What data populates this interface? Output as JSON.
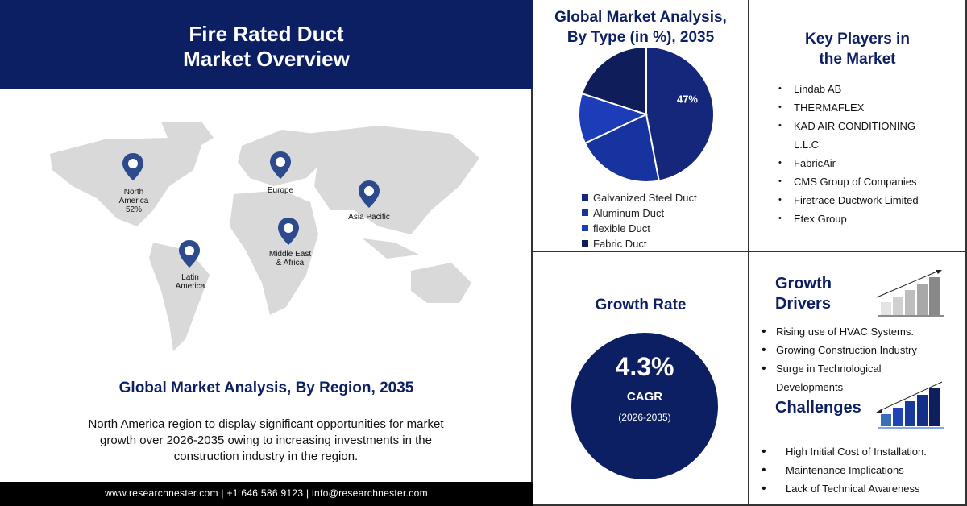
{
  "header": {
    "title_line1": "Fire Rated Duct",
    "title_line2": "Market Overview"
  },
  "map": {
    "pins": [
      {
        "label_lines": [
          "North",
          "America",
          "52%"
        ]
      },
      {
        "label_lines": [
          "Europe"
        ]
      },
      {
        "label_lines": [
          "Asia Pacific"
        ]
      },
      {
        "label_lines": [
          "Middle East",
          "& Africa"
        ]
      },
      {
        "label_lines": [
          "Latin",
          "America"
        ]
      }
    ],
    "pin_color": "#2c4a8c",
    "land_color": "#d9d9d9"
  },
  "region": {
    "title": "Global Market Analysis, By Region, 2035",
    "description": "North America region to display significant opportunities for market growth over 2026-2035 owing to increasing investments in the construction industry in the region."
  },
  "footer": {
    "text": "www.researchnester.com | +1 646 586 9123 | info@researchnester.com"
  },
  "chart_data": {
    "type": "pie",
    "title_line1": "Global Market Analysis,",
    "title_line2": "By Type (in %), 2035",
    "categories": [
      "Galvanized Steel Duct",
      "Aluminum Duct",
      "flexible Duct",
      "Fabric Duct"
    ],
    "values": [
      47,
      21,
      12,
      20
    ],
    "data_labels": [
      "47%",
      "",
      "",
      ""
    ],
    "colors": [
      "#14277a",
      "#1733a0",
      "#1c3cb8",
      "#0f1e5a"
    ],
    "legend_placement": "bottom"
  },
  "key_players": {
    "title_line1": "Key Players in",
    "title_line2": "the Market",
    "items": [
      "Lindab AB",
      "THERMAFLEX",
      "KAD AIR CONDITIONING",
      "L.L.C",
      "FabricAir",
      "CMS Group of Companies",
      "Firetrace Ductwork Limited",
      "Etex Group"
    ]
  },
  "growth_rate": {
    "title": "Growth Rate",
    "value": "4.3%",
    "label": "CAGR",
    "period": "(2026-2035)",
    "circle_color": "#0d1f63"
  },
  "drivers": {
    "title_line1": "Growth",
    "title_line2": "Drivers",
    "items": [
      "Rising use of HVAC Systems.",
      "Growing Construction Industry",
      "Surge in Technological",
      "Developments"
    ]
  },
  "challenges": {
    "title": "Challenges",
    "items": [
      "High Initial Cost of Installation.",
      "Maintenance Implications",
      "Lack of Technical Awareness"
    ]
  }
}
